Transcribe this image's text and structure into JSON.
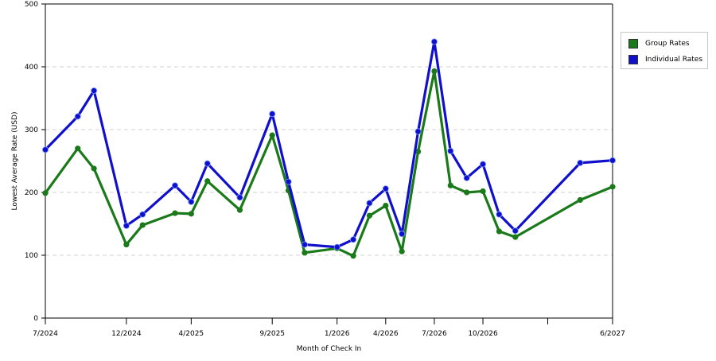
{
  "colors": {
    "group": "#1a7a1a",
    "individual": "#1010cc",
    "grid": "#d0d0d0",
    "axis": "#000000"
  },
  "legend": {
    "position": "right",
    "items": [
      {
        "label": "Group Rates",
        "color": "#1a7a1a"
      },
      {
        "label": "Individual Rates",
        "color": "#1010cc"
      }
    ]
  },
  "chart_data": {
    "type": "line",
    "xlabel": "Month of Check In",
    "ylabel": "Lowest Average Rate (USD)",
    "ylim": [
      0,
      500
    ],
    "yticks": [
      0,
      100,
      200,
      300,
      400,
      500
    ],
    "grid": "horizontal dashed",
    "x": [
      "7/2024",
      "8/2024",
      "9/2024",
      "10/2024",
      "11/2024",
      "12/2024",
      "1/2025",
      "2/2025",
      "3/2025",
      "4/2025",
      "5/2025",
      "6/2025",
      "7/2025",
      "8/2025",
      "9/2025",
      "10/2025",
      "11/2025",
      "12/2025",
      "1/2026",
      "2/2026",
      "3/2026",
      "4/2026",
      "5/2026",
      "6/2026",
      "7/2026",
      "8/2026",
      "9/2026",
      "10/2026",
      "11/2026",
      "12/2026",
      "1/2027",
      "2/2027",
      "3/2027",
      "4/2027",
      "5/2027",
      "6/2027"
    ],
    "x_tick_labels": [
      "7/2024",
      "12/2024",
      "4/2025",
      "9/2025",
      "1/2026",
      "4/2026",
      "7/2026",
      "10/2026",
      "6/2027"
    ],
    "series": [
      {
        "name": "Group Rates",
        "points": [
          [
            "7/2024",
            199
          ],
          [
            "9/2024",
            270
          ],
          [
            "10/2024",
            238
          ],
          [
            "12/2024",
            117
          ],
          [
            "1/2025",
            148
          ],
          [
            "3/2025",
            167
          ],
          [
            "4/2025",
            166
          ],
          [
            "5/2025",
            218
          ],
          [
            "7/2025",
            172
          ],
          [
            "9/2025",
            291
          ],
          [
            "10/2025",
            203
          ],
          [
            "11/2025",
            104
          ],
          [
            "1/2026",
            111
          ],
          [
            "2/2026",
            99
          ],
          [
            "3/2026",
            163
          ],
          [
            "4/2026",
            179
          ],
          [
            "5/2026",
            106
          ],
          [
            "6/2026",
            265
          ],
          [
            "7/2026",
            393
          ],
          [
            "8/2026",
            211
          ],
          [
            "9/2026",
            200
          ],
          [
            "10/2026",
            202
          ],
          [
            "11/2026",
            138
          ],
          [
            "12/2026",
            129
          ],
          [
            "4/2027",
            188
          ],
          [
            "6/2027",
            209
          ]
        ]
      },
      {
        "name": "Individual Rates",
        "points": [
          [
            "7/2024",
            268
          ],
          [
            "9/2024",
            321
          ],
          [
            "10/2024",
            362
          ],
          [
            "12/2024",
            147
          ],
          [
            "1/2025",
            165
          ],
          [
            "3/2025",
            211
          ],
          [
            "4/2025",
            185
          ],
          [
            "5/2025",
            246
          ],
          [
            "7/2025",
            192
          ],
          [
            "9/2025",
            325
          ],
          [
            "10/2025",
            217
          ],
          [
            "11/2025",
            117
          ],
          [
            "1/2026",
            113
          ],
          [
            "2/2026",
            125
          ],
          [
            "3/2026",
            183
          ],
          [
            "4/2026",
            206
          ],
          [
            "5/2026",
            134
          ],
          [
            "6/2026",
            297
          ],
          [
            "7/2026",
            440
          ],
          [
            "8/2026",
            266
          ],
          [
            "9/2026",
            223
          ],
          [
            "10/2026",
            245
          ],
          [
            "11/2026",
            165
          ],
          [
            "12/2026",
            139
          ],
          [
            "4/2027",
            247
          ],
          [
            "6/2027",
            251
          ]
        ]
      }
    ]
  }
}
